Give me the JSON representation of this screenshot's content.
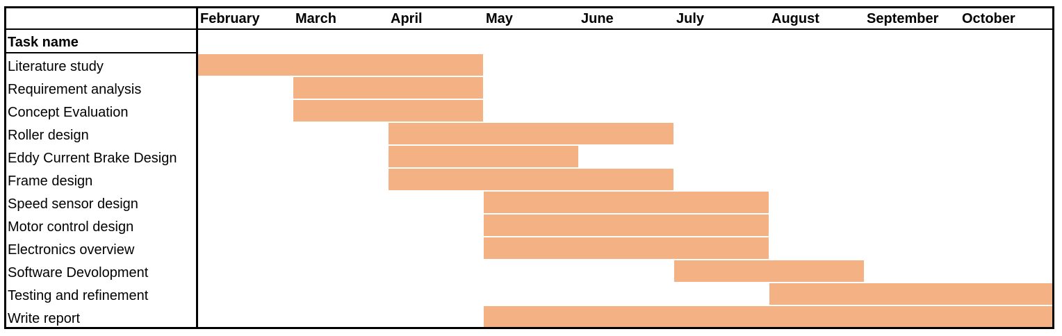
{
  "chart_data": {
    "type": "gantt",
    "title": "",
    "header_label": "Task name",
    "months": [
      "February",
      "March",
      "April",
      "May",
      "June",
      "July",
      "August",
      "September",
      "October"
    ],
    "tasks": [
      {
        "name": "Literature study",
        "start": "February",
        "end": "April"
      },
      {
        "name": "Requirement analysis",
        "start": "March",
        "end": "April"
      },
      {
        "name": "Concept Evaluation",
        "start": "March",
        "end": "April"
      },
      {
        "name": "Roller design",
        "start": "April",
        "end": "June"
      },
      {
        "name": "Eddy Current Brake Design",
        "start": "April",
        "end": "May"
      },
      {
        "name": "Frame design",
        "start": "April",
        "end": "June"
      },
      {
        "name": "Speed sensor design",
        "start": "May",
        "end": "July"
      },
      {
        "name": "Motor control design",
        "start": "May",
        "end": "July"
      },
      {
        "name": "Electronics overview",
        "start": "May",
        "end": "July"
      },
      {
        "name": "Software Devolopment",
        "start": "July",
        "end": "August"
      },
      {
        "name": "Testing and refinement",
        "start": "August",
        "end": "October"
      },
      {
        "name": "Write report",
        "start": "May",
        "end": "October"
      }
    ],
    "bar_color": "#F4B183"
  }
}
